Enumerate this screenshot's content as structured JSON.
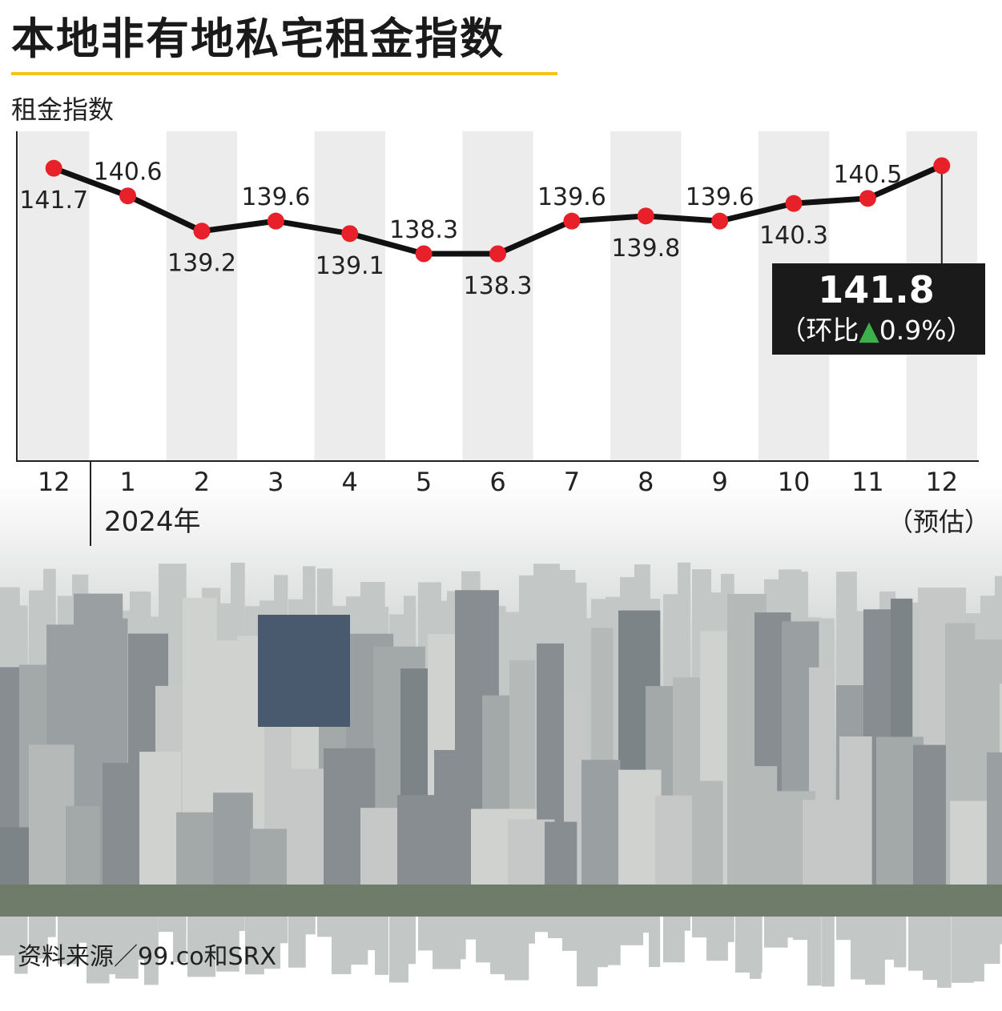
{
  "title": "本地非有地私宅租金指数",
  "source": "资料来源／99.co和SRX",
  "colors": {
    "line": "#111111",
    "marker": "#e8202a",
    "band": "#ececec",
    "callout_bg": "#1a1a1a",
    "up_arrow": "#3cb04a",
    "title_rule": "#f6c21c",
    "photo_sky": "#c9ccc9",
    "photo_buildings": "#8e9395"
  },
  "chart_data": {
    "type": "line",
    "ylabel": "租金指数",
    "categories": [
      "12",
      "1",
      "2",
      "3",
      "4",
      "5",
      "6",
      "7",
      "8",
      "9",
      "10",
      "11",
      "12"
    ],
    "year_label": "2024年",
    "forecast_label": "（预估）",
    "values": [
      141.7,
      140.6,
      139.2,
      139.6,
      139.1,
      138.3,
      138.3,
      139.6,
      139.8,
      139.6,
      140.3,
      140.5,
      141.8
    ],
    "data_labels": [
      "141.7",
      "140.6",
      "139.2",
      "139.6",
      "139.1",
      "138.3",
      "138.3",
      "139.6",
      "139.8",
      "139.6",
      "140.3",
      "140.5",
      ""
    ],
    "callout": {
      "value": "141.8",
      "change_open": "（环比",
      "change_value": "0.9%）",
      "change_direction": "up"
    },
    "grid": false,
    "background": "alternating vertical bands",
    "photo": "Singapore residential skyline"
  }
}
